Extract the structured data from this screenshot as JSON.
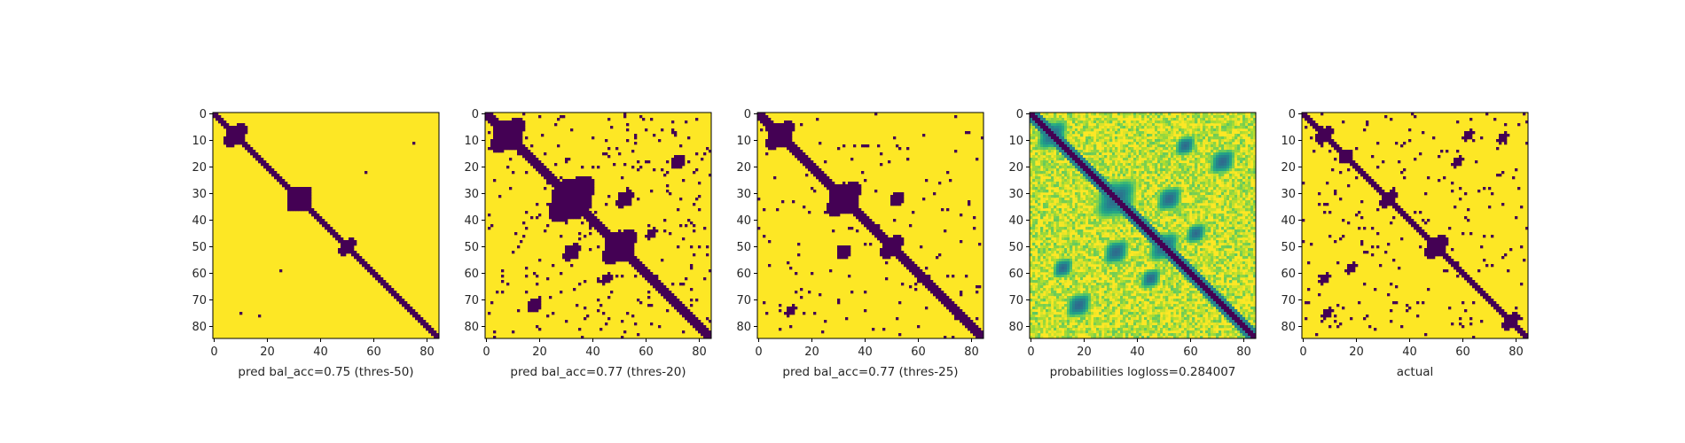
{
  "chart_data": [
    {
      "type": "heatmap",
      "xlabel": "pred bal_acc=0.75 (thres-50)",
      "colormap": "binary-viridis",
      "size": 85,
      "xticks": [
        0,
        20,
        40,
        60,
        80
      ],
      "yticks": [
        0,
        10,
        20,
        30,
        40,
        50,
        60,
        70,
        80
      ],
      "diagonal_halfwidth": 1.5,
      "blobs": [
        {
          "i": 8,
          "j": 8,
          "r": 4
        },
        {
          "i": 32,
          "j": 32,
          "r": 4.5
        },
        {
          "i": 50,
          "j": 50,
          "r": 3
        }
      ],
      "points": [
        [
          11,
          75
        ],
        [
          22,
          57
        ],
        [
          59,
          25
        ],
        [
          75,
          10
        ],
        [
          76,
          17
        ]
      ],
      "noise_density": 0,
      "seed": 11
    },
    {
      "type": "heatmap",
      "xlabel": "pred bal_acc=0.77 (thres-20)",
      "colormap": "binary-viridis",
      "size": 85,
      "xticks": [
        0,
        20,
        40,
        60,
        80
      ],
      "yticks": [
        0,
        10,
        20,
        30,
        40,
        50,
        60,
        70,
        80
      ],
      "diagonal_halfwidth": 2.5,
      "blobs": [
        {
          "i": 8,
          "j": 8,
          "r": 6
        },
        {
          "i": 32,
          "j": 32,
          "r": 8
        },
        {
          "i": 50,
          "j": 50,
          "r": 6
        },
        {
          "i": 18,
          "j": 72,
          "r": 2.5
        },
        {
          "i": 32,
          "j": 52,
          "r": 3
        },
        {
          "i": 45,
          "j": 62,
          "r": 2
        },
        {
          "i": 52,
          "j": 32,
          "r": 3
        },
        {
          "i": 72,
          "j": 18,
          "r": 2.5
        },
        {
          "i": 62,
          "j": 45,
          "r": 2
        }
      ],
      "points": [],
      "noise_density": 0.035,
      "seed": 22
    },
    {
      "type": "heatmap",
      "xlabel": "pred bal_acc=0.77 (thres-25)",
      "colormap": "binary-viridis",
      "size": 85,
      "xticks": [
        0,
        20,
        40,
        60,
        80
      ],
      "yticks": [
        0,
        10,
        20,
        30,
        40,
        50,
        60,
        70,
        80
      ],
      "diagonal_halfwidth": 2.2,
      "blobs": [
        {
          "i": 8,
          "j": 8,
          "r": 5
        },
        {
          "i": 32,
          "j": 32,
          "r": 6
        },
        {
          "i": 50,
          "j": 50,
          "r": 4
        },
        {
          "i": 32,
          "j": 52,
          "r": 2.5
        },
        {
          "i": 52,
          "j": 32,
          "r": 2.5
        },
        {
          "i": 74,
          "j": 12,
          "r": 2
        }
      ],
      "points": [],
      "noise_density": 0.02,
      "seed": 33
    },
    {
      "type": "heatmap",
      "xlabel": "probabilities logloss=0.284007",
      "colormap": "viridis",
      "size": 85,
      "xticks": [
        0,
        20,
        40,
        60,
        80
      ],
      "yticks": [
        0,
        10,
        20,
        30,
        40,
        50,
        60,
        70,
        80
      ],
      "diagonal_halfwidth": 1.5,
      "blobs": [
        {
          "i": 8,
          "j": 8,
          "r": 6
        },
        {
          "i": 32,
          "j": 32,
          "r": 8
        },
        {
          "i": 50,
          "j": 50,
          "r": 6
        },
        {
          "i": 18,
          "j": 72,
          "r": 5
        },
        {
          "i": 32,
          "j": 52,
          "r": 5
        },
        {
          "i": 45,
          "j": 62,
          "r": 4
        },
        {
          "i": 72,
          "j": 18,
          "r": 5
        },
        {
          "i": 52,
          "j": 32,
          "r": 5
        },
        {
          "i": 62,
          "j": 45,
          "r": 4
        },
        {
          "i": 58,
          "j": 12,
          "r": 4
        },
        {
          "i": 12,
          "j": 58,
          "r": 4
        }
      ],
      "points": [],
      "noise_density": 0,
      "seed": 44
    },
    {
      "type": "heatmap",
      "xlabel": "actual",
      "colormap": "binary-viridis",
      "size": 85,
      "xticks": [
        0,
        20,
        40,
        60,
        80
      ],
      "yticks": [
        0,
        10,
        20,
        30,
        40,
        50,
        60,
        70,
        80
      ],
      "diagonal_halfwidth": 1.5,
      "blobs": [
        {
          "i": 8,
          "j": 8,
          "r": 3
        },
        {
          "i": 16,
          "j": 16,
          "r": 2.5
        },
        {
          "i": 32,
          "j": 32,
          "r": 3
        },
        {
          "i": 50,
          "j": 50,
          "r": 4
        },
        {
          "i": 78,
          "j": 78,
          "r": 3
        },
        {
          "i": 8,
          "j": 62,
          "r": 2
        },
        {
          "i": 9,
          "j": 75,
          "r": 2
        },
        {
          "i": 18,
          "j": 58,
          "r": 2
        },
        {
          "i": 62,
          "j": 8,
          "r": 2
        },
        {
          "i": 75,
          "j": 9,
          "r": 2
        },
        {
          "i": 58,
          "j": 18,
          "r": 2
        }
      ],
      "points": [],
      "noise_density": 0.03,
      "seed": 55
    }
  ]
}
